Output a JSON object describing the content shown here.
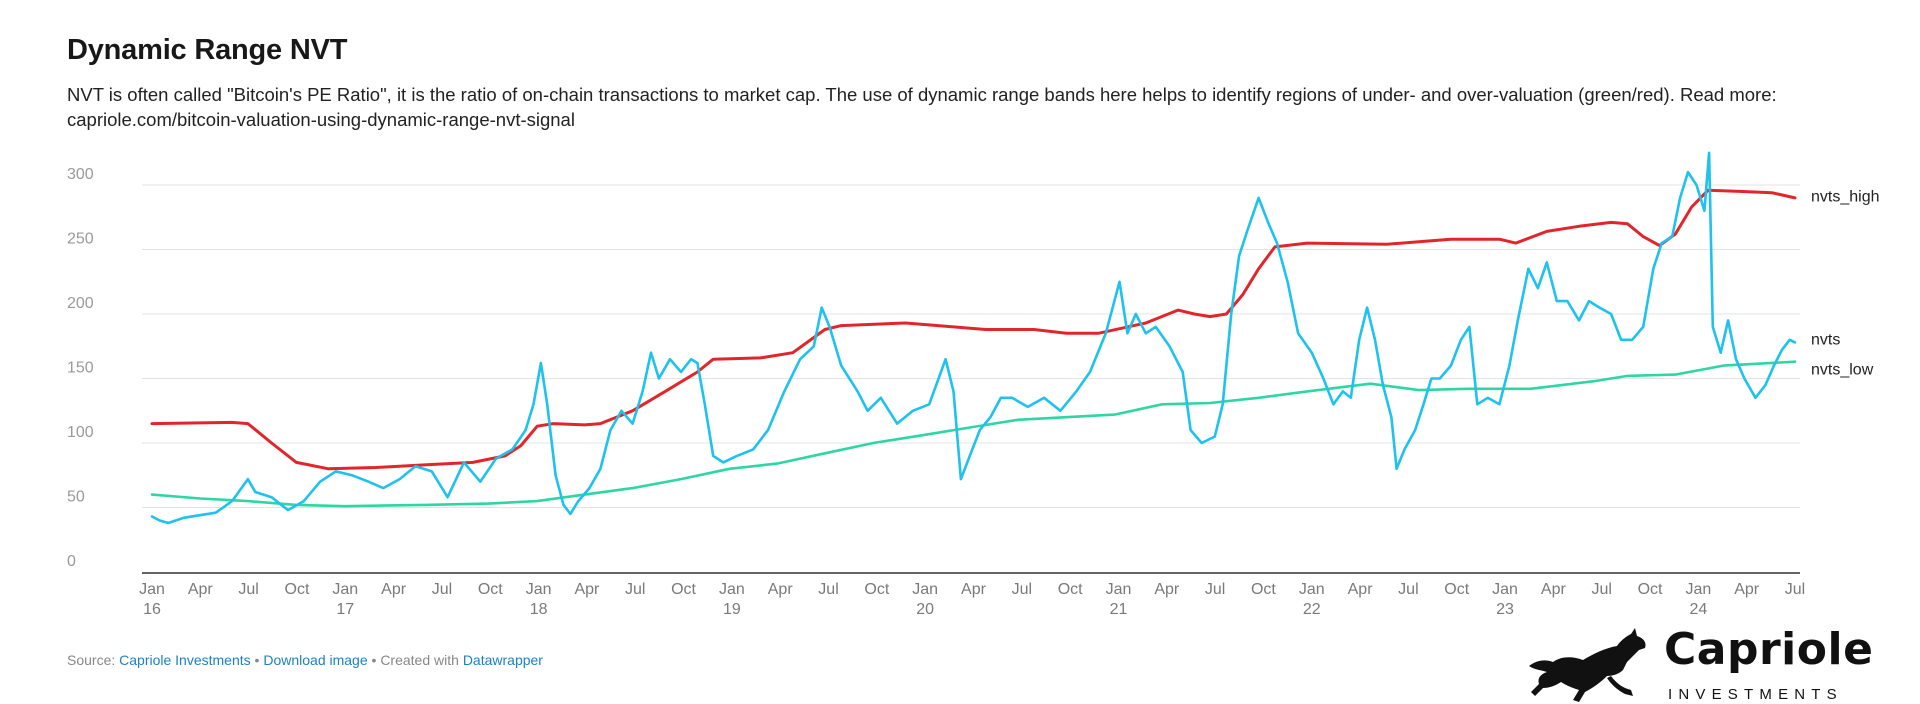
{
  "header": {
    "title": "Dynamic Range NVT",
    "description": "NVT is often called \"Bitcoin's PE Ratio\", it is the ratio of on-chain transactions to market cap. The use of dynamic range bands here helps to identify regions of under- and over-valuation (green/red). Read more: capriole.com/bitcoin-valuation-using-dynamic-range-nvt-signal"
  },
  "footer": {
    "source_prefix": "Source: ",
    "source_link": "Capriole Investments",
    "separator1": " • ",
    "download_link": "Download image",
    "created_prefix": " • Created with ",
    "datawrapper_link": "Datawrapper"
  },
  "logo": {
    "name": "Capriole",
    "sub": "INVESTMENTS"
  },
  "colors": {
    "nvts": "#1ec2ec",
    "nvts_high": "#e0262b",
    "nvts_low": "#2ed6a4",
    "grid": "#e3e3e3",
    "axis": "#333333"
  },
  "chart_data": {
    "type": "line",
    "ylim": [
      0,
      310
    ],
    "yticks": [
      0,
      50,
      100,
      150,
      200,
      250,
      300
    ],
    "xlim": [
      "2016-01-01",
      "2024-07-15"
    ],
    "xticks": [
      {
        "month": "Jan",
        "year": "16"
      },
      {
        "month": "Apr",
        "year": ""
      },
      {
        "month": "Jul",
        "year": ""
      },
      {
        "month": "Oct",
        "year": ""
      },
      {
        "month": "Jan",
        "year": "17"
      },
      {
        "month": "Apr",
        "year": ""
      },
      {
        "month": "Jul",
        "year": ""
      },
      {
        "month": "Oct",
        "year": ""
      },
      {
        "month": "Jan",
        "year": "18"
      },
      {
        "month": "Apr",
        "year": ""
      },
      {
        "month": "Jul",
        "year": ""
      },
      {
        "month": "Oct",
        "year": ""
      },
      {
        "month": "Jan",
        "year": "19"
      },
      {
        "month": "Apr",
        "year": ""
      },
      {
        "month": "Jul",
        "year": ""
      },
      {
        "month": "Oct",
        "year": ""
      },
      {
        "month": "Jan",
        "year": "20"
      },
      {
        "month": "Apr",
        "year": ""
      },
      {
        "month": "Jul",
        "year": ""
      },
      {
        "month": "Oct",
        "year": ""
      },
      {
        "month": "Jan",
        "year": "21"
      },
      {
        "month": "Apr",
        "year": ""
      },
      {
        "month": "Jul",
        "year": ""
      },
      {
        "month": "Oct",
        "year": ""
      },
      {
        "month": "Jan",
        "year": "22"
      },
      {
        "month": "Apr",
        "year": ""
      },
      {
        "month": "Jul",
        "year": ""
      },
      {
        "month": "Oct",
        "year": ""
      },
      {
        "month": "Jan",
        "year": "23"
      },
      {
        "month": "Apr",
        "year": ""
      },
      {
        "month": "Jul",
        "year": ""
      },
      {
        "month": "Oct",
        "year": ""
      },
      {
        "month": "Jan",
        "year": "24"
      },
      {
        "month": "Apr",
        "year": ""
      },
      {
        "month": "Jul",
        "year": ""
      }
    ],
    "series": [
      {
        "name": "nvts_high",
        "points": [
          [
            "2016-01-01",
            115
          ],
          [
            "2016-06-01",
            116
          ],
          [
            "2016-07-01",
            115
          ],
          [
            "2016-08-15",
            100
          ],
          [
            "2016-10-01",
            85
          ],
          [
            "2016-12-01",
            80
          ],
          [
            "2017-03-01",
            81
          ],
          [
            "2017-06-01",
            83
          ],
          [
            "2017-09-01",
            85
          ],
          [
            "2017-11-01",
            90
          ],
          [
            "2017-12-01",
            98
          ],
          [
            "2018-01-01",
            113
          ],
          [
            "2018-02-01",
            115
          ],
          [
            "2018-04-01",
            114
          ],
          [
            "2018-05-01",
            115
          ],
          [
            "2018-07-01",
            125
          ],
          [
            "2018-09-01",
            140
          ],
          [
            "2018-11-01",
            155
          ],
          [
            "2018-12-01",
            165
          ],
          [
            "2019-03-01",
            166
          ],
          [
            "2019-05-01",
            170
          ],
          [
            "2019-07-01",
            188
          ],
          [
            "2019-08-01",
            191
          ],
          [
            "2019-12-01",
            193
          ],
          [
            "2020-03-01",
            190
          ],
          [
            "2020-05-01",
            188
          ],
          [
            "2020-08-01",
            188
          ],
          [
            "2020-10-01",
            185
          ],
          [
            "2020-12-01",
            185
          ],
          [
            "2021-03-01",
            193
          ],
          [
            "2021-05-01",
            203
          ],
          [
            "2021-06-01",
            200
          ],
          [
            "2021-07-01",
            198
          ],
          [
            "2021-08-01",
            200
          ],
          [
            "2021-09-01",
            215
          ],
          [
            "2021-10-01",
            235
          ],
          [
            "2021-11-01",
            252
          ],
          [
            "2022-01-01",
            255
          ],
          [
            "2022-06-01",
            254
          ],
          [
            "2022-08-01",
            256
          ],
          [
            "2022-10-01",
            258
          ],
          [
            "2023-01-01",
            258
          ],
          [
            "2023-02-01",
            255
          ],
          [
            "2023-04-01",
            264
          ],
          [
            "2023-06-01",
            268
          ],
          [
            "2023-08-01",
            271
          ],
          [
            "2023-09-01",
            270
          ],
          [
            "2023-10-01",
            260
          ],
          [
            "2023-11-01",
            253
          ],
          [
            "2023-12-01",
            262
          ],
          [
            "2024-01-01",
            283
          ],
          [
            "2024-02-01",
            296
          ],
          [
            "2024-04-01",
            295
          ],
          [
            "2024-06-01",
            294
          ],
          [
            "2024-07-15",
            290
          ]
        ]
      },
      {
        "name": "nvts",
        "points": [
          [
            "2016-01-01",
            43
          ],
          [
            "2016-01-15",
            40
          ],
          [
            "2016-02-01",
            38
          ],
          [
            "2016-03-01",
            42
          ],
          [
            "2016-04-01",
            44
          ],
          [
            "2016-05-01",
            46
          ],
          [
            "2016-06-01",
            55
          ],
          [
            "2016-07-01",
            72
          ],
          [
            "2016-07-15",
            62
          ],
          [
            "2016-08-15",
            58
          ],
          [
            "2016-09-15",
            48
          ],
          [
            "2016-10-15",
            55
          ],
          [
            "2016-11-15",
            70
          ],
          [
            "2016-12-15",
            78
          ],
          [
            "2017-01-15",
            75
          ],
          [
            "2017-02-15",
            70
          ],
          [
            "2017-03-15",
            65
          ],
          [
            "2017-04-15",
            72
          ],
          [
            "2017-05-15",
            82
          ],
          [
            "2017-06-15",
            78
          ],
          [
            "2017-07-15",
            58
          ],
          [
            "2017-08-15",
            85
          ],
          [
            "2017-09-15",
            70
          ],
          [
            "2017-10-15",
            88
          ],
          [
            "2017-11-15",
            95
          ],
          [
            "2017-12-10",
            110
          ],
          [
            "2017-12-25",
            130
          ],
          [
            "2018-01-08",
            162
          ],
          [
            "2018-01-20",
            130
          ],
          [
            "2018-02-05",
            75
          ],
          [
            "2018-02-20",
            52
          ],
          [
            "2018-03-05",
            45
          ],
          [
            "2018-03-20",
            55
          ],
          [
            "2018-04-10",
            65
          ],
          [
            "2018-05-01",
            80
          ],
          [
            "2018-05-20",
            110
          ],
          [
            "2018-06-10",
            125
          ],
          [
            "2018-07-01",
            115
          ],
          [
            "2018-07-20",
            140
          ],
          [
            "2018-08-05",
            170
          ],
          [
            "2018-08-20",
            150
          ],
          [
            "2018-09-10",
            165
          ],
          [
            "2018-10-01",
            155
          ],
          [
            "2018-10-20",
            165
          ],
          [
            "2018-11-01",
            162
          ],
          [
            "2018-11-15",
            130
          ],
          [
            "2018-12-01",
            90
          ],
          [
            "2018-12-20",
            85
          ],
          [
            "2019-01-15",
            90
          ],
          [
            "2019-02-15",
            95
          ],
          [
            "2019-03-15",
            110
          ],
          [
            "2019-04-15",
            140
          ],
          [
            "2019-05-15",
            165
          ],
          [
            "2019-06-10",
            175
          ],
          [
            "2019-06-25",
            205
          ],
          [
            "2019-07-10",
            190
          ],
          [
            "2019-08-01",
            160
          ],
          [
            "2019-09-01",
            140
          ],
          [
            "2019-09-20",
            125
          ],
          [
            "2019-10-15",
            135
          ],
          [
            "2019-11-15",
            115
          ],
          [
            "2019-12-15",
            125
          ],
          [
            "2020-01-15",
            130
          ],
          [
            "2020-02-15",
            165
          ],
          [
            "2020-03-01",
            140
          ],
          [
            "2020-03-15",
            72
          ],
          [
            "2020-04-01",
            90
          ],
          [
            "2020-04-20",
            110
          ],
          [
            "2020-05-10",
            120
          ],
          [
            "2020-05-30",
            135
          ],
          [
            "2020-06-20",
            135
          ],
          [
            "2020-07-20",
            128
          ],
          [
            "2020-08-20",
            135
          ],
          [
            "2020-09-20",
            125
          ],
          [
            "2020-10-20",
            140
          ],
          [
            "2020-11-15",
            155
          ],
          [
            "2020-12-15",
            185
          ],
          [
            "2021-01-10",
            225
          ],
          [
            "2021-01-25",
            185
          ],
          [
            "2021-02-10",
            200
          ],
          [
            "2021-03-01",
            185
          ],
          [
            "2021-03-20",
            190
          ],
          [
            "2021-04-15",
            175
          ],
          [
            "2021-05-10",
            155
          ],
          [
            "2021-05-25",
            110
          ],
          [
            "2021-06-15",
            100
          ],
          [
            "2021-07-10",
            105
          ],
          [
            "2021-07-25",
            130
          ],
          [
            "2021-08-10",
            200
          ],
          [
            "2021-08-25",
            245
          ],
          [
            "2021-09-10",
            265
          ],
          [
            "2021-10-01",
            290
          ],
          [
            "2021-10-20",
            270
          ],
          [
            "2021-11-05",
            255
          ],
          [
            "2021-11-25",
            225
          ],
          [
            "2021-12-15",
            185
          ],
          [
            "2022-01-10",
            170
          ],
          [
            "2022-02-01",
            150
          ],
          [
            "2022-02-20",
            130
          ],
          [
            "2022-03-10",
            140
          ],
          [
            "2022-03-25",
            135
          ],
          [
            "2022-04-10",
            180
          ],
          [
            "2022-04-25",
            205
          ],
          [
            "2022-05-10",
            180
          ],
          [
            "2022-05-25",
            145
          ],
          [
            "2022-06-10",
            120
          ],
          [
            "2022-06-20",
            80
          ],
          [
            "2022-07-05",
            95
          ],
          [
            "2022-07-25",
            110
          ],
          [
            "2022-08-10",
            130
          ],
          [
            "2022-08-25",
            150
          ],
          [
            "2022-09-10",
            150
          ],
          [
            "2022-10-01",
            160
          ],
          [
            "2022-10-20",
            180
          ],
          [
            "2022-11-05",
            190
          ],
          [
            "2022-11-20",
            130
          ],
          [
            "2022-12-10",
            135
          ],
          [
            "2023-01-01",
            130
          ],
          [
            "2023-01-20",
            160
          ],
          [
            "2023-02-05",
            195
          ],
          [
            "2023-02-25",
            235
          ],
          [
            "2023-03-15",
            220
          ],
          [
            "2023-04-01",
            240
          ],
          [
            "2023-04-20",
            210
          ],
          [
            "2023-05-10",
            210
          ],
          [
            "2023-06-01",
            195
          ],
          [
            "2023-06-20",
            210
          ],
          [
            "2023-07-10",
            205
          ],
          [
            "2023-08-01",
            200
          ],
          [
            "2023-08-20",
            180
          ],
          [
            "2023-09-10",
            180
          ],
          [
            "2023-10-01",
            190
          ],
          [
            "2023-10-20",
            235
          ],
          [
            "2023-11-05",
            255
          ],
          [
            "2023-11-25",
            260
          ],
          [
            "2023-12-10",
            290
          ],
          [
            "2023-12-25",
            310
          ],
          [
            "2024-01-10",
            300
          ],
          [
            "2024-01-25",
            280
          ],
          [
            "2024-02-03",
            325
          ],
          [
            "2024-02-10",
            190
          ],
          [
            "2024-02-25",
            170
          ],
          [
            "2024-03-10",
            195
          ],
          [
            "2024-03-25",
            165
          ],
          [
            "2024-04-10",
            150
          ],
          [
            "2024-05-01",
            135
          ],
          [
            "2024-05-20",
            145
          ],
          [
            "2024-06-05",
            160
          ],
          [
            "2024-06-20",
            172
          ],
          [
            "2024-07-05",
            180
          ],
          [
            "2024-07-15",
            178
          ]
        ]
      },
      {
        "name": "nvts_low",
        "points": [
          [
            "2016-01-01",
            60
          ],
          [
            "2016-04-01",
            57
          ],
          [
            "2016-07-01",
            55
          ],
          [
            "2016-10-01",
            52
          ],
          [
            "2017-01-01",
            51
          ],
          [
            "2017-06-01",
            52
          ],
          [
            "2017-10-01",
            53
          ],
          [
            "2018-01-01",
            55
          ],
          [
            "2018-04-01",
            60
          ],
          [
            "2018-07-01",
            65
          ],
          [
            "2018-10-01",
            72
          ],
          [
            "2019-01-01",
            80
          ],
          [
            "2019-04-01",
            84
          ],
          [
            "2019-07-01",
            92
          ],
          [
            "2019-10-01",
            100
          ],
          [
            "2020-01-01",
            106
          ],
          [
            "2020-04-01",
            112
          ],
          [
            "2020-07-01",
            118
          ],
          [
            "2020-10-01",
            120
          ],
          [
            "2021-01-01",
            122
          ],
          [
            "2021-04-01",
            130
          ],
          [
            "2021-07-01",
            131
          ],
          [
            "2021-10-01",
            135
          ],
          [
            "2022-01-01",
            140
          ],
          [
            "2022-05-01",
            146
          ],
          [
            "2022-08-01",
            141
          ],
          [
            "2022-11-01",
            142
          ],
          [
            "2023-03-01",
            142
          ],
          [
            "2023-07-01",
            148
          ],
          [
            "2023-09-01",
            152
          ],
          [
            "2023-12-01",
            153
          ],
          [
            "2024-03-01",
            160
          ],
          [
            "2024-07-15",
            163
          ]
        ]
      }
    ],
    "series_label_names": {
      "nvts_high": "nvts_high",
      "nvts": "nvts",
      "nvts_low": "nvts_low"
    }
  }
}
